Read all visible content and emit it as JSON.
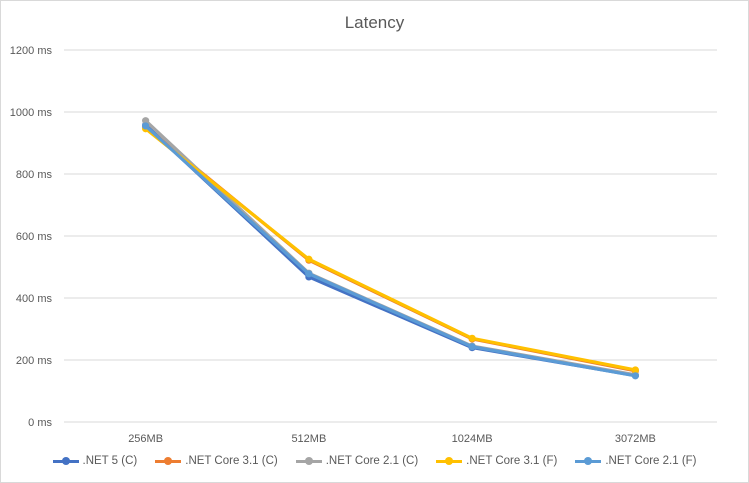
{
  "chart_data": {
    "type": "line",
    "title": "Latency",
    "xlabel": "",
    "ylabel": "",
    "categories": [
      "256MB",
      "512MB",
      "1024MB",
      "3072MB"
    ],
    "ylim": [
      0,
      1200
    ],
    "yticks": [
      0,
      200,
      400,
      600,
      800,
      1000,
      1200
    ],
    "ytick_labels": [
      "0 ms",
      "200 ms",
      "400 ms",
      "600 ms",
      "800 ms",
      "1000 ms",
      "1200 ms"
    ],
    "grid": true,
    "legend_position": "bottom",
    "series": [
      {
        "name": ".NET 5 (C)",
        "color": "#4472c4",
        "values": [
          958,
          468,
          240,
          150
        ]
      },
      {
        "name": ".NET Core 3.1 (C)",
        "color": "#ed7d31",
        "values": [
          952,
          522,
          268,
          165
        ]
      },
      {
        "name": ".NET Core 2.1 (C)",
        "color": "#a5a5a5",
        "values": [
          972,
          480,
          245,
          152
        ]
      },
      {
        "name": ".NET Core 3.1 (F)",
        "color": "#ffc000",
        "values": [
          946,
          525,
          270,
          168
        ]
      },
      {
        "name": ".NET Core 2.1 (F)",
        "color": "#5b9bd5",
        "values": [
          955,
          478,
          243,
          149
        ]
      }
    ]
  }
}
